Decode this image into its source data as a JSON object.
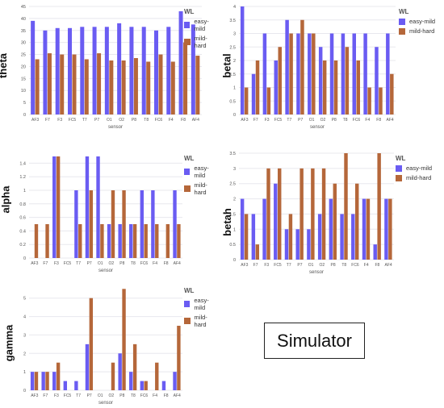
{
  "colors": {
    "easy_mild": "#6a5cf2",
    "mild_hard": "#b5673a",
    "grid": "#e8e8ee",
    "axis_text": "#555555"
  },
  "simulator_label": "Simulator",
  "chart_data": [
    {
      "type": "bar",
      "ylabel": "theta",
      "xlabel": "sensor",
      "legend_title": "WL",
      "legend_position": "top-right",
      "ylim": [
        0,
        45
      ],
      "yticks": [
        0,
        5,
        10,
        15,
        20,
        25,
        30,
        35,
        40,
        45
      ],
      "categories": [
        "AF3",
        "F7",
        "F3",
        "FC5",
        "T7",
        "P7",
        "O1",
        "O2",
        "P8",
        "T8",
        "FC6",
        "F4",
        "F8",
        "AF4"
      ],
      "series": [
        {
          "name": "easy-mild",
          "values": [
            39,
            35,
            36,
            36,
            36.5,
            36.5,
            36.5,
            38,
            36.5,
            36.5,
            35,
            36.5,
            43,
            37.5
          ]
        },
        {
          "name": "mild-hard",
          "values": [
            23,
            25.5,
            25,
            25,
            23,
            25.5,
            22.5,
            22.5,
            23.5,
            22,
            25,
            22,
            30,
            24.5
          ]
        }
      ]
    },
    {
      "type": "bar",
      "ylabel": "betal",
      "xlabel": "sensor",
      "legend_title": "WL",
      "legend_position": "top-right",
      "ylim": [
        0,
        4
      ],
      "yticks": [
        0,
        0.5,
        1,
        1.5,
        2,
        2.5,
        3,
        3.5,
        4
      ],
      "categories": [
        "AF3",
        "F7",
        "F3",
        "FC5",
        "T7",
        "P7",
        "O1",
        "O2",
        "P8",
        "T8",
        "FC6",
        "F4",
        "F8",
        "AF4"
      ],
      "series": [
        {
          "name": "easy-mild",
          "values": [
            4,
            1.5,
            3,
            2,
            3.5,
            3,
            3,
            2.5,
            3,
            3,
            3,
            3,
            2.5,
            3
          ]
        },
        {
          "name": "mild-hard",
          "values": [
            1,
            2,
            1,
            2.5,
            3,
            3.5,
            3,
            2,
            2,
            2.5,
            2,
            1,
            1,
            1.5
          ]
        }
      ]
    },
    {
      "type": "bar",
      "ylabel": "alpha",
      "xlabel": "sensor",
      "legend_title": "WL",
      "legend_position": "top-right",
      "ylim": [
        0,
        1.5
      ],
      "yticks": [
        0,
        0.2,
        0.4,
        0.6,
        0.8,
        1,
        1.2,
        1.4
      ],
      "categories": [
        "AF3",
        "F7",
        "F3",
        "FC5",
        "T7",
        "P7",
        "O1",
        "O2",
        "P8",
        "T8",
        "FC6",
        "F4",
        "F8",
        "AF4"
      ],
      "series": [
        {
          "name": "easy-mild",
          "values": [
            0,
            0,
            1.5,
            0,
            1,
            1.5,
            1.5,
            0.5,
            0.5,
            0.5,
            1,
            1,
            0,
            1
          ]
        },
        {
          "name": "mild-hard",
          "values": [
            0.5,
            0.5,
            1.5,
            0,
            0.5,
            1,
            0.5,
            1,
            1,
            0.5,
            0.5,
            0.5,
            0.5,
            0.5
          ]
        }
      ]
    },
    {
      "type": "bar",
      "ylabel": "betah",
      "xlabel": "sensor",
      "legend_title": "WL",
      "legend_position": "top-right",
      "ylim": [
        0,
        3.5
      ],
      "yticks": [
        0,
        0.5,
        1,
        1.5,
        2,
        2.5,
        3,
        3.5
      ],
      "categories": [
        "AF3",
        "F7",
        "F3",
        "FC5",
        "T7",
        "P7",
        "O1",
        "O2",
        "P8",
        "T8",
        "FC6",
        "F4",
        "F8",
        "AF4"
      ],
      "series": [
        {
          "name": "easy-mild",
          "values": [
            2,
            1.5,
            2,
            2.5,
            1,
            1,
            1,
            1.5,
            2,
            1.5,
            1.5,
            2,
            0.5,
            2
          ]
        },
        {
          "name": "mild-hard",
          "values": [
            1.5,
            0.5,
            3,
            3,
            1.5,
            3,
            3,
            3,
            2.5,
            3.5,
            2.5,
            2,
            3.5,
            2
          ]
        }
      ]
    },
    {
      "type": "bar",
      "ylabel": "gamma",
      "xlabel": "sensor",
      "legend_title": "WL",
      "legend_position": "top-right",
      "ylim": [
        0,
        5.6
      ],
      "yticks": [
        0,
        1,
        2,
        3,
        4,
        5
      ],
      "categories": [
        "AF3",
        "F7",
        "F3",
        "FC5",
        "T7",
        "P7",
        "O1",
        "O2",
        "P8",
        "T8",
        "FC6",
        "F4",
        "F8",
        "AF4"
      ],
      "series": [
        {
          "name": "easy-mild",
          "values": [
            1,
            1,
            1,
            0.5,
            0.5,
            2.5,
            0,
            0,
            2,
            1,
            0.5,
            0,
            0.5,
            1
          ]
        },
        {
          "name": "mild-hard",
          "values": [
            1,
            1,
            1.5,
            0,
            0,
            5,
            0,
            1.5,
            5.5,
            2.5,
            0.5,
            1.5,
            0,
            3.5
          ]
        }
      ]
    }
  ]
}
